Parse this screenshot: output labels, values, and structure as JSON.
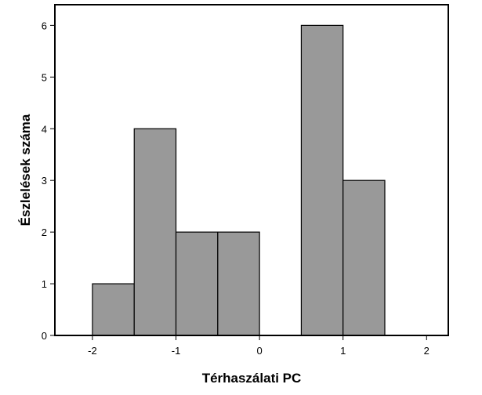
{
  "chart_data": {
    "type": "bar",
    "subtype": "histogram",
    "xlabel": "Térhaszálati PC",
    "ylabel": "Észlelések száma",
    "bins": [
      {
        "x0": -2.0,
        "x1": -1.5,
        "count": 1
      },
      {
        "x0": -1.5,
        "x1": -1.0,
        "count": 4
      },
      {
        "x0": -1.0,
        "x1": -0.5,
        "count": 2
      },
      {
        "x0": -0.5,
        "x1": 0.0,
        "count": 2
      },
      {
        "x0": 0.0,
        "x1": 0.5,
        "count": 0
      },
      {
        "x0": 0.5,
        "x1": 1.0,
        "count": 6
      },
      {
        "x0": 1.0,
        "x1": 1.5,
        "count": 3
      },
      {
        "x0": 1.5,
        "x1": 2.0,
        "count": 0
      }
    ],
    "xticks": [
      {
        "value": -2,
        "label": "-2"
      },
      {
        "value": -1,
        "label": "-1"
      },
      {
        "value": 0,
        "label": "0"
      },
      {
        "value": 1,
        "label": "1"
      },
      {
        "value": 2,
        "label": "2"
      }
    ],
    "yticks": [
      {
        "value": 0,
        "label": "0"
      },
      {
        "value": 1,
        "label": "1"
      },
      {
        "value": 2,
        "label": "2"
      },
      {
        "value": 3,
        "label": "3"
      },
      {
        "value": 4,
        "label": "4"
      },
      {
        "value": 5,
        "label": "5"
      },
      {
        "value": 6,
        "label": "6"
      }
    ],
    "bar_color": "#999999",
    "bar_edge_color": "#000000",
    "grid": false
  }
}
